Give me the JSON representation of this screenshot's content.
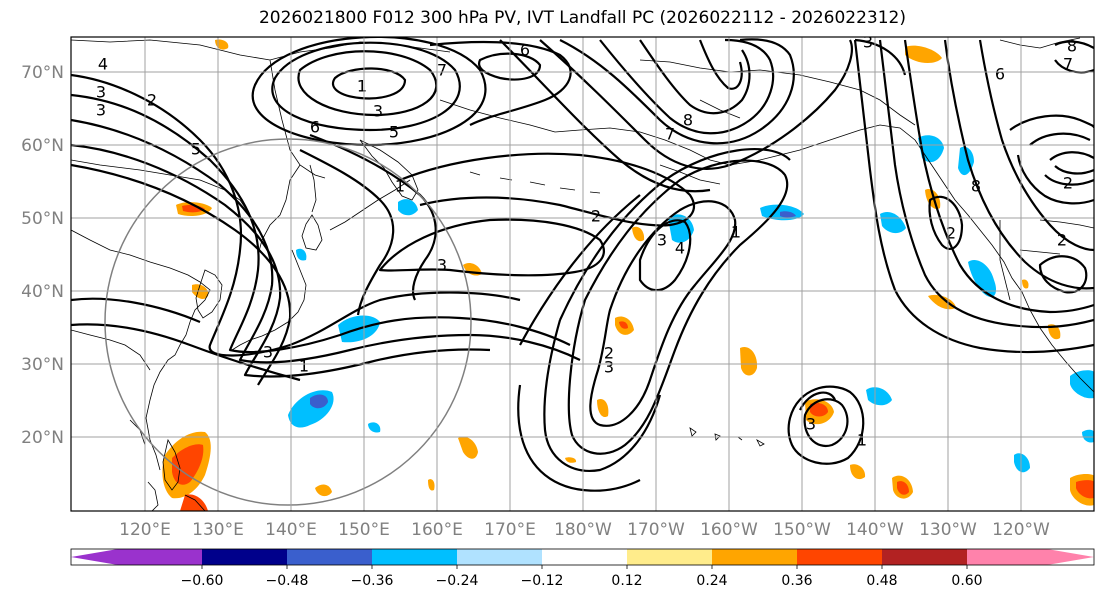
{
  "title": "2026021800 F012 300 hPa PV, IVT Landfall PC (2026022112 - 2026022312)",
  "lat_labels": [
    "70°N",
    "60°N",
    "50°N",
    "40°N",
    "30°N",
    "20°N"
  ],
  "lon_labels": [
    "120°E",
    "130°E",
    "140°E",
    "150°E",
    "160°E",
    "170°E",
    "180°W",
    "170°W",
    "160°W",
    "150°W",
    "140°W",
    "130°W",
    "120°W"
  ],
  "contour_labels": [
    "4",
    "3",
    "2",
    "3",
    "1",
    "3",
    "5",
    "6",
    "5",
    "6",
    "7",
    "7",
    "8",
    "1",
    "2",
    "3",
    "3",
    "4",
    "3",
    "1",
    "3",
    "2",
    "3",
    "1",
    "1",
    "2",
    "8",
    "6",
    "8",
    "7",
    "2",
    "3",
    "2"
  ],
  "colorbar": {
    "ticks": [
      "−0.60",
      "−0.48",
      "−0.36",
      "−0.24",
      "−0.12",
      "0.12",
      "0.24",
      "0.36",
      "0.48",
      "0.60"
    ],
    "colors": [
      "#9a32cd",
      "#00008b",
      "#3a5fcd",
      "#00bfff",
      "#b0e2ff",
      "#ffffff",
      "#ffec8b",
      "#ffa500",
      "#ff4500",
      "#b22222",
      "#ff82ab"
    ]
  }
}
